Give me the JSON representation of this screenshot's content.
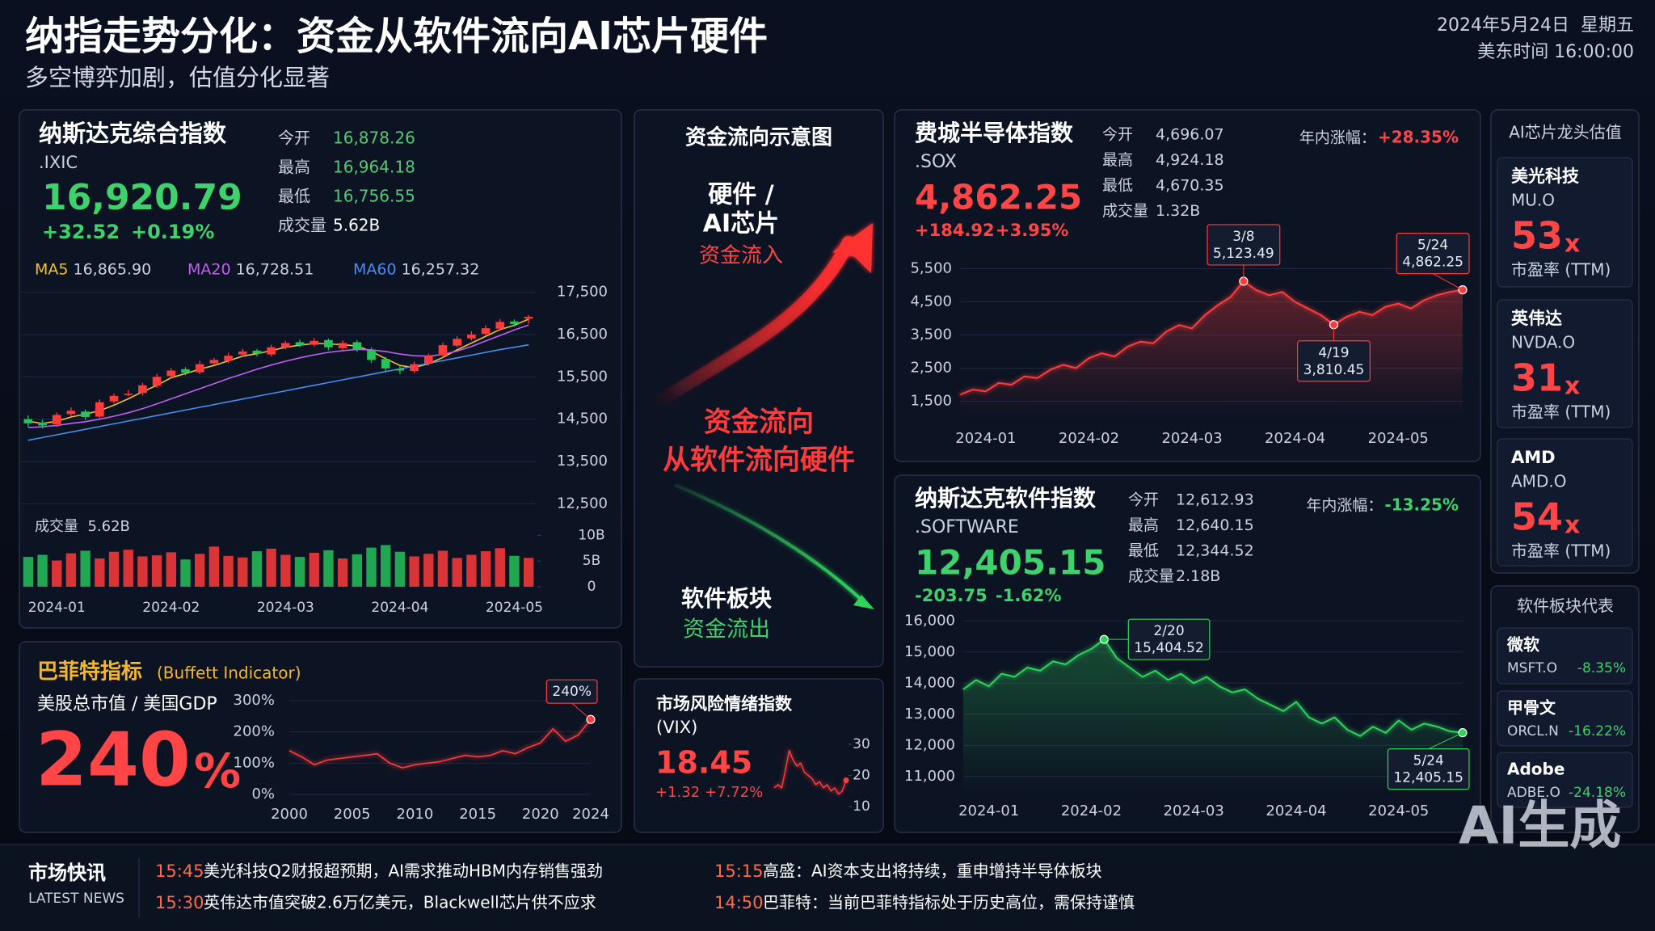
{
  "header": {
    "title": "纳指走势分化：资金从软件流向AI芯片硬件",
    "subtitle": "多空博弈加剧，估值分化显著",
    "date": "2024年5月24日  星期五",
    "time": "美东时间 16:00:00"
  },
  "nasdaq_panel": {
    "name": "纳斯达克综合指数",
    "code": ".IXIC",
    "price": "16,920.79",
    "change": "+32.52",
    "change_pct": "+0.19%",
    "stats": [
      {
        "label": "今开",
        "value": "16,878.26"
      },
      {
        "label": "最高",
        "value": "16,964.18"
      },
      {
        "label": "最低",
        "value": "16,756.55"
      },
      {
        "label": "成交量",
        "value": "5.62B"
      }
    ],
    "volume_title": "成交量  5.62B"
  },
  "buffett_panel": {
    "title": "巴菲特指标",
    "title_en": "(Buffett Indicator)",
    "subtitle": "美股总市值 / 美国GDP",
    "value": "240",
    "unit": "%"
  },
  "flow_panel": {
    "title": "资金流向示意图",
    "hardware": "硬件 /",
    "hardware2": "AI芯片",
    "inflow": "资金流入",
    "center1": "资金流向",
    "center2": "从软件流向硬件",
    "software": "软件板块",
    "outflow": "资金流出"
  },
  "vix_panel": {
    "title": "市场风险情绪指数",
    "code": "(VIX)",
    "value": "18.45",
    "change": "+1.32",
    "change_pct": "+7.72%"
  },
  "sox_panel": {
    "name": "费城半导体指数",
    "code": ".SOX",
    "price": "4,862.25",
    "change": "+184.92",
    "change_pct": "+3.95%",
    "stats": [
      {
        "label": "今开",
        "value": "4,696.07"
      },
      {
        "label": "最高",
        "value": "4,924.18"
      },
      {
        "label": "最低",
        "value": "4,670.35"
      },
      {
        "label": "成交量",
        "value": "1.32B"
      }
    ],
    "ytd_label": "年内涨幅：",
    "ytd": "+28.35%"
  },
  "software_panel": {
    "name": "纳斯达克软件指数",
    "code": ".SOFTWARE",
    "price": "12,405.15",
    "change": "-203.75",
    "change_pct": "-1.62%",
    "stats": [
      {
        "label": "今开",
        "value": "12,612.93"
      },
      {
        "label": "最高",
        "value": "12,640.15"
      },
      {
        "label": "最低",
        "value": "12,344.52"
      },
      {
        "label": "成交量",
        "value": "2.18B"
      }
    ],
    "ytd_label": "年内涨幅：",
    "ytd": "-13.25%"
  },
  "ai_chips": {
    "title": "AI芯片龙头估值",
    "items": [
      {
        "name": "美光科技",
        "code": "MU.O",
        "pe": "53",
        "unit": "x",
        "metric": "市盈率 (TTM)"
      },
      {
        "name": "英伟达",
        "code": "NVDA.O",
        "pe": "31",
        "unit": "x",
        "metric": "市盈率 (TTM)"
      },
      {
        "name": "AMD",
        "code": "AMD.O",
        "pe": "54",
        "unit": "x",
        "metric": "市盈率 (TTM)"
      }
    ]
  },
  "software_reps": {
    "title": "软件板块代表",
    "items": [
      {
        "name": "微软",
        "code": "MSFT.O",
        "change": "-8.35%"
      },
      {
        "name": "甲骨文",
        "code": "ORCL.N",
        "change": "-16.22%"
      },
      {
        "name": "Adobe",
        "code": "ADBE.O",
        "change": "-24.18%"
      }
    ]
  },
  "news": {
    "title": "市场快讯",
    "subtitle": "LATEST NEWS",
    "items": [
      {
        "time": "15:45",
        "text": "美光科技Q2财报超预期，AI需求推动HBM内存销售强劲"
      },
      {
        "time": "15:30",
        "text": "英伟达市值突破2.6万亿美元，Blackwell芯片供不应求"
      },
      {
        "time": "15:15",
        "text": "高盛：AI资本支出将持续，重申增持半导体板块"
      },
      {
        "time": "14:50",
        "text": "巴菲特：当前巴菲特指标处于历史高位，需保持谨慎"
      }
    ]
  },
  "watermark": "AI生成",
  "chart_data": [
    {
      "type": "candlestick",
      "grid": true,
      "up_color": "#ff3b3b",
      "down_color": "#26c25a",
      "categories": [
        null,
        null,
        "2024-01",
        null,
        null,
        null,
        null,
        null,
        null,
        null,
        "2024-02",
        null,
        null,
        null,
        null,
        null,
        null,
        null,
        "2024-03",
        null,
        null,
        null,
        null,
        null,
        null,
        null,
        "2024-04",
        null,
        null,
        null,
        null,
        null,
        null,
        null,
        "2024-05",
        null
      ],
      "open": [
        14500,
        14420,
        14380,
        14620,
        14680,
        14560,
        14920,
        15080,
        15120,
        15290,
        15520,
        15680,
        15610,
        15820,
        15880,
        16030,
        16120,
        16030,
        16190,
        16320,
        16260,
        16370,
        16180,
        16320,
        16140,
        15920,
        15690,
        15640,
        15810,
        16010,
        16240,
        16410,
        16520,
        16640,
        16810,
        16878.26
      ],
      "high": [
        14590,
        14490,
        14660,
        14780,
        14730,
        14970,
        15110,
        15190,
        15360,
        15570,
        15710,
        15730,
        15880,
        15950,
        16070,
        16160,
        16160,
        16260,
        16350,
        16380,
        16420,
        16410,
        16360,
        16370,
        16200,
        15970,
        15760,
        15860,
        16050,
        16310,
        16460,
        16580,
        16720,
        16870,
        16860,
        16964.18
      ],
      "low": [
        14320,
        14280,
        14320,
        14570,
        14480,
        14520,
        14870,
        15040,
        15060,
        15240,
        15480,
        15540,
        15560,
        15780,
        15820,
        15990,
        15980,
        15980,
        16150,
        16200,
        16220,
        16130,
        16140,
        16090,
        15830,
        15640,
        15570,
        15590,
        15770,
        15960,
        16200,
        16360,
        16480,
        16590,
        16690,
        16756.55
      ],
      "close": [
        14400,
        14350,
        14600,
        14700,
        14550,
        14900,
        15050,
        15100,
        15300,
        15500,
        15650,
        15600,
        15800,
        15900,
        16000,
        16100,
        16050,
        16200,
        16300,
        16250,
        16350,
        16200,
        16300,
        16150,
        15900,
        15700,
        15650,
        15800,
        16000,
        16250,
        16400,
        16500,
        16650,
        16800,
        16750,
        16920.79
      ],
      "series": [
        {
          "name": "MA5",
          "label": "16,865.90",
          "color": "#f0c030",
          "values": [
            14450,
            14400,
            14450,
            14550,
            14620,
            14700,
            14830,
            14980,
            15150,
            15300,
            15480,
            15580,
            15680,
            15770,
            15880,
            15990,
            16050,
            16120,
            16200,
            16250,
            16290,
            16280,
            16260,
            16230,
            16100,
            15930,
            15770,
            15720,
            15810,
            15960,
            16140,
            16300,
            16460,
            16620,
            16720,
            16865.9
          ]
        },
        {
          "name": "MA20",
          "label": "16,728.51",
          "color": "#c060f0",
          "values": [
            14300,
            14320,
            14350,
            14400,
            14440,
            14500,
            14570,
            14650,
            14750,
            14860,
            14980,
            15100,
            15220,
            15340,
            15460,
            15570,
            15680,
            15780,
            15870,
            15950,
            16020,
            16080,
            16120,
            16150,
            16140,
            16100,
            16040,
            16000,
            15990,
            16030,
            16110,
            16220,
            16350,
            16480,
            16610,
            16728.51
          ]
        },
        {
          "name": "MA60",
          "label": "16,257.32",
          "color": "#4a8cf0",
          "values": [
            14000,
            14065,
            14130,
            14195,
            14260,
            14325,
            14390,
            14455,
            14520,
            14585,
            14650,
            14715,
            14780,
            14845,
            14910,
            14975,
            15040,
            15105,
            15170,
            15235,
            15300,
            15365,
            15430,
            15495,
            15560,
            15625,
            15690,
            15755,
            15820,
            15885,
            15950,
            16015,
            16080,
            16145,
            16200,
            16257.32
          ]
        }
      ],
      "ylim": [
        12200,
        17800
      ],
      "yticks": [
        {
          "value": 12500,
          "label": "12,500"
        },
        {
          "value": 13500,
          "label": "13,500"
        },
        {
          "value": 14500,
          "label": "14,500"
        },
        {
          "value": 15500,
          "label": "15,500"
        },
        {
          "value": 16500,
          "label": "16,500"
        },
        {
          "value": 17500,
          "label": "17,500"
        }
      ],
      "volume": [
        5.8,
        6.2,
        5.1,
        6.5,
        7.0,
        5.5,
        6.8,
        7.2,
        5.9,
        6.1,
        6.7,
        5.3,
        6.4,
        7.8,
        6.0,
        5.7,
        6.9,
        7.4,
        6.2,
        5.8,
        6.6,
        7.1,
        5.5,
        6.3,
        7.6,
        8.1,
        6.8,
        5.9,
        6.4,
        7.0,
        5.6,
        6.2,
        6.9,
        7.5,
        6.0,
        5.62
      ],
      "volume_ylim": [
        0,
        11
      ],
      "volume_yticks": [
        0,
        {
          "value": 5,
          "label": "5B"
        },
        {
          "value": 10,
          "label": "10B"
        }
      ]
    },
    {
      "type": "line",
      "color": "#ff3b3b",
      "grid": true,
      "x": [
        2000,
        2001,
        2002,
        2003,
        2004,
        2005,
        2006,
        2007,
        2008,
        2009,
        2010,
        2011,
        2012,
        2013,
        2014,
        2015,
        2016,
        2017,
        2018,
        2019,
        2020,
        2021,
        2022,
        2023,
        2024
      ],
      "values": [
        140,
        120,
        95,
        110,
        115,
        120,
        125,
        130,
        100,
        85,
        95,
        100,
        105,
        115,
        125,
        120,
        125,
        140,
        130,
        150,
        165,
        210,
        170,
        190,
        240
      ],
      "xlim": [
        2000,
        2024
      ],
      "xticks": [
        2000,
        2005,
        2010,
        2015,
        2020,
        2024
      ],
      "ylim": [
        0,
        300
      ],
      "yticks": [
        {
          "value": 0,
          "label": "0%"
        },
        {
          "value": 100,
          "label": "100%"
        },
        {
          "value": 200,
          "label": "200%"
        },
        {
          "value": 300,
          "label": "300%"
        }
      ],
      "annotations": [
        {
          "value": 240,
          "label": "240%",
          "position": "above"
        }
      ]
    },
    {
      "type": "line",
      "color": "#ff3b3b",
      "grid": false,
      "values": [
        16,
        17,
        16,
        22,
        28,
        25,
        23,
        24,
        21,
        20,
        19,
        17,
        18,
        16,
        17,
        15,
        16,
        14,
        15,
        18.45
      ],
      "ylim": [
        10,
        30
      ],
      "yticks": [
        10,
        20,
        30
      ]
    },
    {
      "type": "line",
      "color": "#ff3b3b",
      "grid": true,
      "area": true,
      "categories": [
        null,
        null,
        "2024-01",
        null,
        null,
        null,
        null,
        null,
        null,
        null,
        "2024-02",
        null,
        null,
        null,
        null,
        null,
        null,
        null,
        "2024-03",
        null,
        null,
        null,
        null,
        null,
        null,
        null,
        "2024-04",
        null,
        null,
        null,
        null,
        null,
        null,
        null,
        "2024-05",
        null,
        null,
        null,
        null,
        null
      ],
      "values": [
        1700,
        1850,
        1800,
        2050,
        2000,
        2250,
        2200,
        2450,
        2600,
        2500,
        2800,
        2950,
        2850,
        3150,
        3300,
        3250,
        3600,
        3800,
        3700,
        4100,
        4400,
        4650,
        5123.49,
        4850,
        4700,
        4800,
        4500,
        4300,
        4100,
        3810.45,
        4050,
        4200,
        4100,
        4350,
        4450,
        4300,
        4550,
        4700,
        4800,
        4862.25
      ],
      "ylim": [
        1000,
        6000
      ],
      "yticks": [
        {
          "value": 1500,
          "label": "1,500"
        },
        {
          "value": 2500,
          "label": "2,500"
        },
        {
          "value": 3500,
          "label": "3,500"
        },
        {
          "value": 4500,
          "label": "4,500"
        },
        {
          "value": 5500,
          "label": "5,500"
        }
      ],
      "annotations": [
        {
          "date": "3/8",
          "value": 5123.49,
          "label": "5,123.49",
          "position": "above"
        },
        {
          "date": "4/19",
          "value": 3810.45,
          "label": "3,810.45",
          "position": "below"
        },
        {
          "date": "5/24",
          "value": 4862.25,
          "label": "4,862.25",
          "position": "above"
        }
      ]
    },
    {
      "type": "line",
      "color": "#2fd45a",
      "grid": true,
      "area": true,
      "categories": [
        null,
        null,
        "2024-01",
        null,
        null,
        null,
        null,
        null,
        null,
        null,
        "2024-02",
        null,
        null,
        null,
        null,
        null,
        null,
        null,
        "2024-03",
        null,
        null,
        null,
        null,
        null,
        null,
        null,
        "2024-04",
        null,
        null,
        null,
        null,
        null,
        null,
        null,
        "2024-05",
        null,
        null,
        null,
        null,
        null
      ],
      "values": [
        13800,
        14100,
        13900,
        14300,
        14200,
        14500,
        14400,
        14700,
        14600,
        14900,
        15100,
        15404.52,
        14800,
        14500,
        14200,
        14400,
        14100,
        14300,
        14000,
        14200,
        13900,
        13700,
        13800,
        13500,
        13300,
        13100,
        13400,
        12900,
        12700,
        12900,
        12500,
        12300,
        12600,
        12400,
        12800,
        12500,
        12700,
        12600,
        12450,
        12405.15
      ],
      "ylim": [
        10500,
        16500
      ],
      "yticks": [
        {
          "value": 11000,
          "label": "11,000"
        },
        {
          "value": 12000,
          "label": "12,000"
        },
        {
          "value": 13000,
          "label": "13,000"
        },
        {
          "value": 14000,
          "label": "14,000"
        },
        {
          "value": 15000,
          "label": "15,000"
        },
        {
          "value": 16000,
          "label": "16,000"
        }
      ],
      "annotations": [
        {
          "date": "2/20",
          "value": 15404.52,
          "label": "15,404.52",
          "position": "right"
        },
        {
          "date": "5/24",
          "value": 12405.15,
          "label": "12,405.15",
          "position": "below"
        }
      ]
    }
  ]
}
